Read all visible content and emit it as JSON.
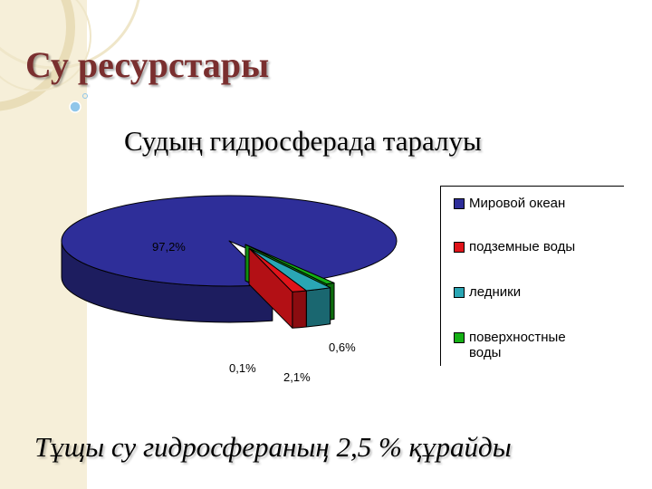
{
  "title": "Су ресурстары",
  "subtitle": "Судың гидросферада таралуы",
  "bottom_note": "Тұщы су гидросфераның 2,5 % құрайды",
  "colors": {
    "ocean": "#2e2e99",
    "underground": "#e0141a",
    "glaciers": "#2aa6b4",
    "surface": "#15b015"
  },
  "chart_data": {
    "type": "pie",
    "title": "",
    "categories": [
      "Мировой океан",
      "подземные воды",
      "ледники",
      "поверхностные воды"
    ],
    "values": [
      97.2,
      0.6,
      2.1,
      0.1
    ],
    "data_labels": [
      "97,2%",
      "0,6%",
      "2,1%",
      "0,1%"
    ],
    "legend": [
      {
        "label": "Мировой океан",
        "color": "#2e2e99"
      },
      {
        "label": "подземные воды",
        "color": "#e0141a"
      },
      {
        "label": "ледники",
        "color": "#2aa6b4"
      },
      {
        "label": "поверхностные воды",
        "color": "#15b015"
      }
    ],
    "legend_position": "right"
  }
}
